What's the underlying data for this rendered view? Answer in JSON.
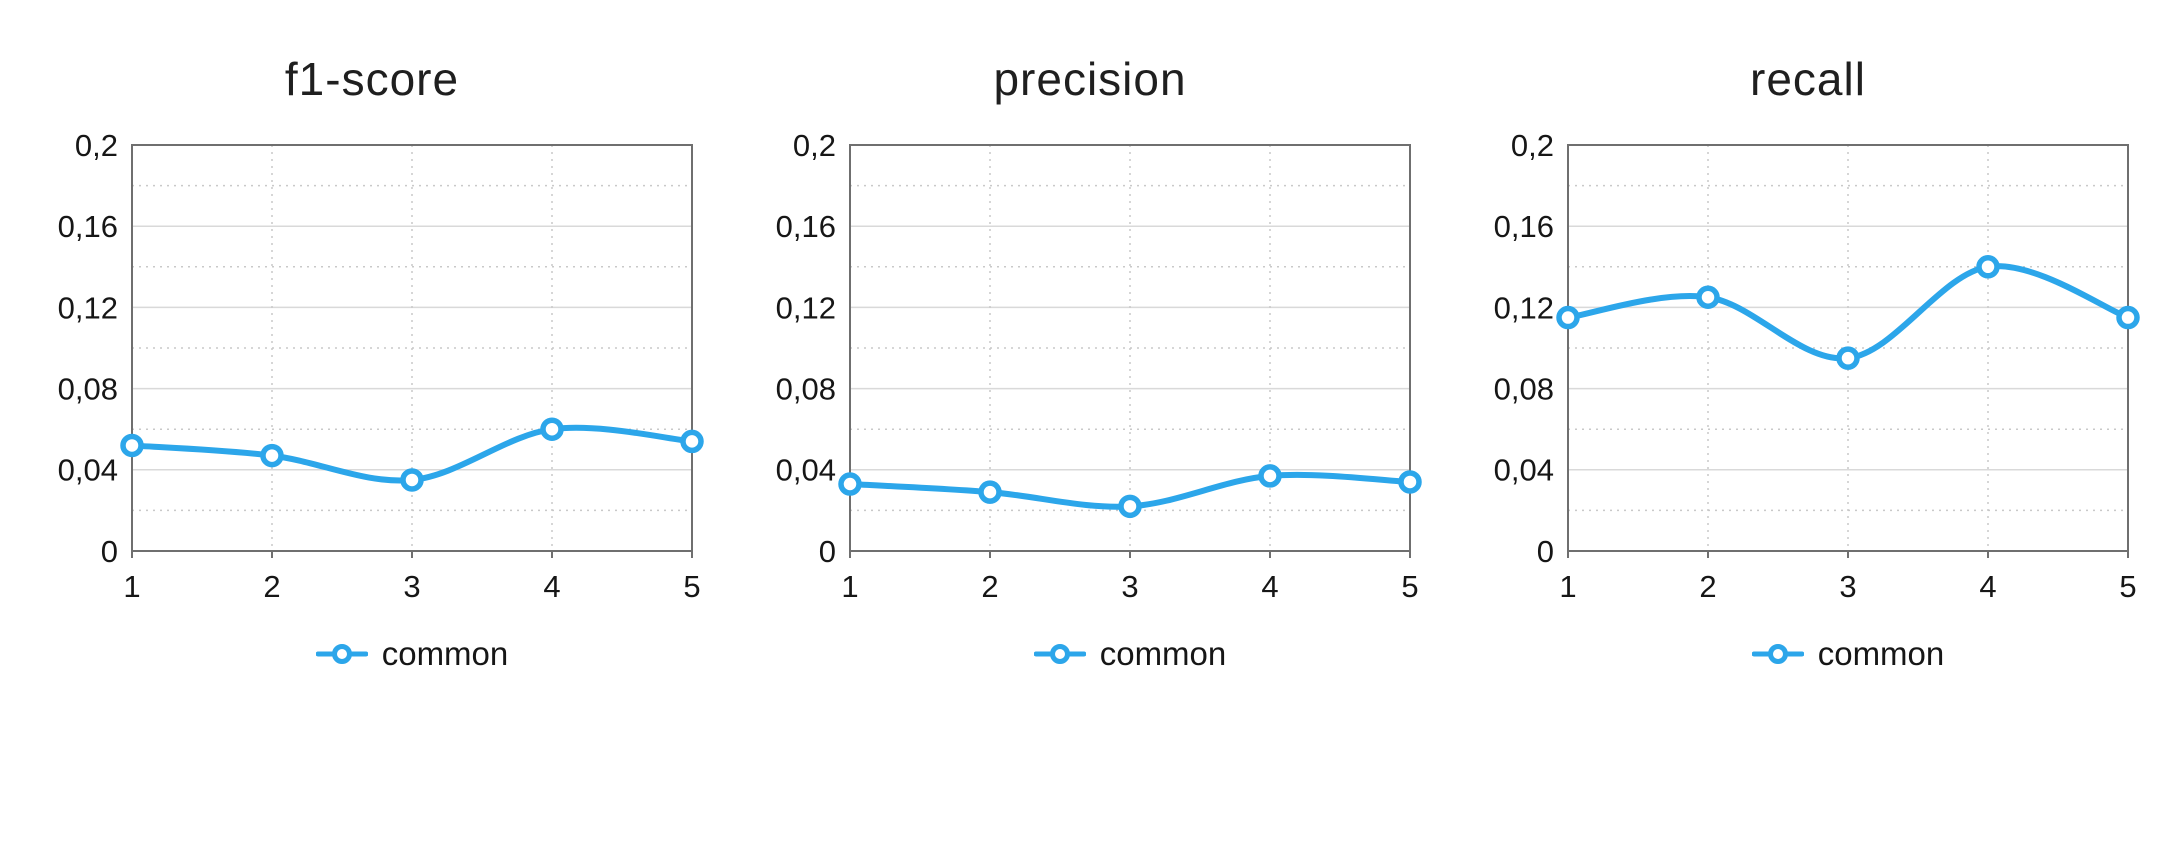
{
  "page": {
    "background": "#ffffff"
  },
  "charts_shared": {
    "series_color": "#2CA6EA",
    "marker_fill": "#ffffff",
    "grid_major_color": "#d9d9d9",
    "grid_minor_color": "#c9c9c9",
    "axis_color": "#6f6f6f",
    "text_color": "#161616",
    "legend_position": "bottom"
  },
  "chart_data": [
    {
      "type": "line",
      "title": "f1-score",
      "x": [
        1,
        2,
        3,
        4,
        5
      ],
      "x_tick_labels": [
        "1",
        "2",
        "3",
        "4",
        "5"
      ],
      "ylim": [
        0,
        0.2
      ],
      "y_major_step": 0.04,
      "y_minor_step": 0.02,
      "y_tick_labels": [
        "0",
        "0,04",
        "0,08",
        "0,12",
        "0,16",
        "0,2"
      ],
      "grid": true,
      "legend_position": "bottom",
      "series": [
        {
          "name": "common",
          "values": [
            0.052,
            0.047,
            0.035,
            0.06,
            0.054
          ]
        }
      ]
    },
    {
      "type": "line",
      "title": "precision",
      "x": [
        1,
        2,
        3,
        4,
        5
      ],
      "x_tick_labels": [
        "1",
        "2",
        "3",
        "4",
        "5"
      ],
      "ylim": [
        0,
        0.2
      ],
      "y_major_step": 0.04,
      "y_minor_step": 0.02,
      "y_tick_labels": [
        "0",
        "0,04",
        "0,08",
        "0,12",
        "0,16",
        "0,2"
      ],
      "grid": true,
      "legend_position": "bottom",
      "series": [
        {
          "name": "common",
          "values": [
            0.033,
            0.029,
            0.022,
            0.037,
            0.034
          ]
        }
      ]
    },
    {
      "type": "line",
      "title": "recall",
      "x": [
        1,
        2,
        3,
        4,
        5
      ],
      "x_tick_labels": [
        "1",
        "2",
        "3",
        "4",
        "5"
      ],
      "ylim": [
        0,
        0.2
      ],
      "y_major_step": 0.04,
      "y_minor_step": 0.02,
      "y_tick_labels": [
        "0",
        "0,04",
        "0,08",
        "0,12",
        "0,16",
        "0,2"
      ],
      "grid": true,
      "legend_position": "bottom",
      "series": [
        {
          "name": "common",
          "values": [
            0.115,
            0.125,
            0.095,
            0.14,
            0.115
          ]
        }
      ]
    }
  ]
}
